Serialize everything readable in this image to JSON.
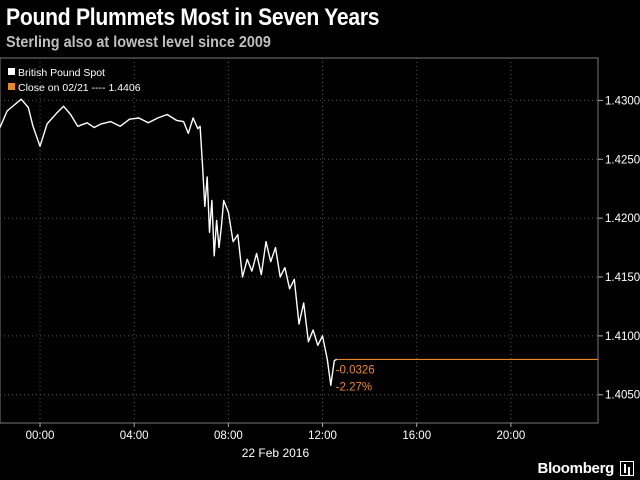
{
  "header": {
    "title": "Pound Plummets Most in Seven Years",
    "subtitle": "Sterling also at lowest level since 2009"
  },
  "legend": {
    "series_label": "British Pound Spot",
    "close_label": "Close on 02/21 ---- 1.4406"
  },
  "annotation": {
    "change_abs": "-0.0326",
    "change_pct": "-2.27%"
  },
  "footer": {
    "brand": "Bloomberg"
  },
  "colors": {
    "background": "#000000",
    "line": "#ffffff",
    "close_marker": "#e8872a",
    "grid": "#555555"
  },
  "chart_data": {
    "type": "line",
    "title": "Pound Plummets Most in Seven Years",
    "subtitle": "Sterling also at lowest level since 2009",
    "xlabel": "22 Feb 2016",
    "ylabel": "",
    "x_unit": "hours",
    "xlim": [
      -1.7,
      23.7
    ],
    "ylim": [
      1.4026,
      1.4336
    ],
    "x_ticks": [
      0,
      4,
      8,
      12,
      16,
      20
    ],
    "x_tick_labels": [
      "00:00",
      "04:00",
      "08:00",
      "12:00",
      "16:00",
      "20:00"
    ],
    "y_ticks": [
      1.405,
      1.41,
      1.415,
      1.42,
      1.425,
      1.43
    ],
    "y_tick_labels": [
      "1.4050",
      "1.4100",
      "1.4150",
      "1.4200",
      "1.4250",
      "1.4300"
    ],
    "grid": true,
    "legend_position": "top-left",
    "reference_line": {
      "label": "Close on 02/21",
      "value": 1.4406
    },
    "last_value_line": {
      "value": 1.408
    },
    "series": [
      {
        "name": "British Pound Spot",
        "x": [
          -1.7,
          -1.4,
          -1.1,
          -0.8,
          -0.5,
          -0.3,
          0.0,
          0.3,
          0.7,
          1.0,
          1.3,
          1.6,
          2.0,
          2.3,
          2.6,
          3.0,
          3.4,
          3.8,
          4.2,
          4.6,
          5.0,
          5.4,
          5.8,
          6.1,
          6.3,
          6.5,
          6.7,
          6.8,
          6.9,
          7.0,
          7.1,
          7.2,
          7.3,
          7.4,
          7.5,
          7.6,
          7.7,
          7.8,
          8.0,
          8.2,
          8.4,
          8.6,
          8.8,
          9.0,
          9.2,
          9.4,
          9.6,
          9.8,
          10.0,
          10.2,
          10.4,
          10.6,
          10.8,
          11.0,
          11.2,
          11.4,
          11.6,
          11.8,
          12.0,
          12.2,
          12.35,
          12.5,
          12.6
        ],
        "values": [
          1.4277,
          1.4291,
          1.4296,
          1.4301,
          1.4294,
          1.4278,
          1.4261,
          1.428,
          1.4289,
          1.4295,
          1.4288,
          1.4278,
          1.4281,
          1.4277,
          1.428,
          1.4282,
          1.4278,
          1.4284,
          1.4285,
          1.4281,
          1.4285,
          1.4288,
          1.4283,
          1.4282,
          1.4272,
          1.4285,
          1.4276,
          1.4278,
          1.4245,
          1.421,
          1.4235,
          1.4188,
          1.4215,
          1.4168,
          1.4198,
          1.4175,
          1.4192,
          1.4215,
          1.4205,
          1.418,
          1.4186,
          1.415,
          1.4165,
          1.4155,
          1.417,
          1.4152,
          1.418,
          1.4163,
          1.4175,
          1.415,
          1.4158,
          1.414,
          1.4148,
          1.411,
          1.4128,
          1.4095,
          1.4105,
          1.4092,
          1.41,
          1.408,
          1.4058,
          1.4079,
          1.408
        ]
      }
    ]
  }
}
